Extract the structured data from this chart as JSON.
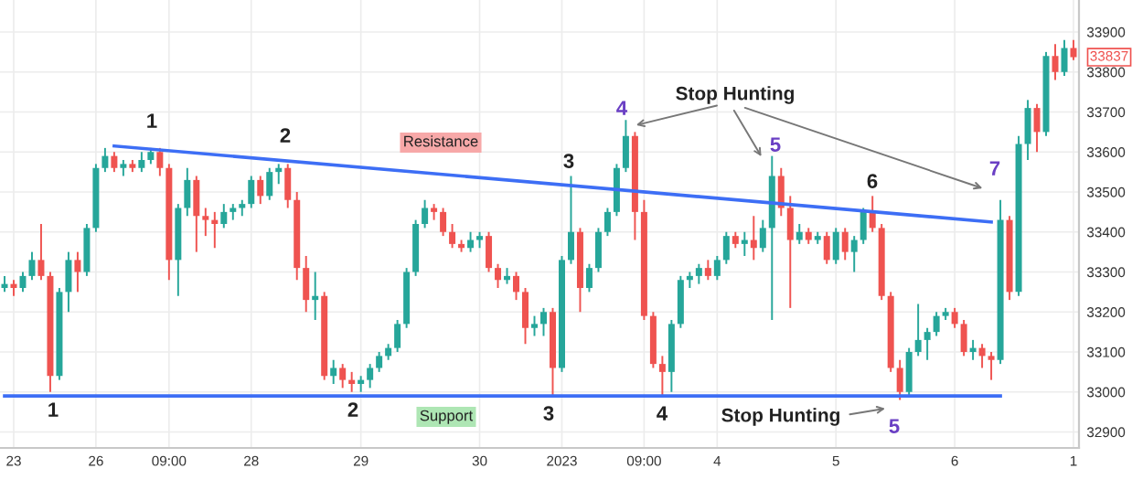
{
  "chart_data": {
    "type": "candlestick",
    "categories": [
      null,
      "23",
      null,
      null,
      null,
      null,
      null,
      null,
      null,
      null,
      "26",
      null,
      null,
      null,
      null,
      null,
      null,
      null,
      "09:00",
      null,
      null,
      null,
      null,
      null,
      null,
      null,
      null,
      "28",
      null,
      null,
      null,
      null,
      null,
      null,
      null,
      null,
      null,
      null,
      null,
      "29",
      null,
      null,
      null,
      null,
      null,
      null,
      null,
      null,
      null,
      null,
      null,
      null,
      "30",
      null,
      null,
      null,
      null,
      null,
      null,
      null,
      null,
      "2023",
      null,
      null,
      null,
      null,
      null,
      null,
      null,
      null,
      "09:00",
      null,
      null,
      null,
      null,
      null,
      null,
      null,
      "4",
      null,
      null,
      null,
      null,
      null,
      null,
      null,
      null,
      null,
      null,
      null,
      null,
      "5",
      null,
      null,
      null,
      null,
      null,
      null,
      null,
      null,
      null,
      null,
      null,
      null,
      "6",
      null,
      null,
      null,
      null,
      null,
      null,
      null,
      null,
      null,
      null,
      null,
      null,
      "1"
    ],
    "ohlc": [
      [
        33260,
        33290,
        33250,
        33270
      ],
      [
        33270,
        33280,
        33240,
        33260
      ],
      [
        33260,
        33300,
        33250,
        33290
      ],
      [
        33290,
        33350,
        33280,
        33330
      ],
      [
        33330,
        33420,
        33280,
        33290
      ],
      [
        33290,
        33300,
        33000,
        33040
      ],
      [
        33040,
        33260,
        33030,
        33250
      ],
      [
        33250,
        33350,
        33200,
        33330
      ],
      [
        33330,
        33350,
        33250,
        33300
      ],
      [
        33300,
        33420,
        33290,
        33410
      ],
      [
        33410,
        33570,
        33400,
        33560
      ],
      [
        33560,
        33610,
        33550,
        33590
      ],
      [
        33590,
        33600,
        33550,
        33560
      ],
      [
        33560,
        33580,
        33540,
        33570
      ],
      [
        33570,
        33580,
        33550,
        33560
      ],
      [
        33560,
        33600,
        33550,
        33580
      ],
      [
        33580,
        33610,
        33570,
        33600
      ],
      [
        33600,
        33610,
        33540,
        33560
      ],
      [
        33560,
        33570,
        33280,
        33330
      ],
      [
        33330,
        33470,
        33240,
        33460
      ],
      [
        33460,
        33560,
        33440,
        33530
      ],
      [
        33530,
        33540,
        33350,
        33440
      ],
      [
        33440,
        33460,
        33390,
        33430
      ],
      [
        33430,
        33450,
        33360,
        33420
      ],
      [
        33420,
        33470,
        33410,
        33450
      ],
      [
        33450,
        33470,
        33430,
        33460
      ],
      [
        33460,
        33480,
        33440,
        33470
      ],
      [
        33470,
        33540,
        33460,
        33530
      ],
      [
        33530,
        33540,
        33470,
        33490
      ],
      [
        33490,
        33560,
        33480,
        33550
      ],
      [
        33550,
        33570,
        33520,
        33560
      ],
      [
        33560,
        33570,
        33460,
        33480
      ],
      [
        33480,
        33500,
        33280,
        33310
      ],
      [
        33310,
        33340,
        33200,
        33230
      ],
      [
        33230,
        33300,
        33180,
        33240
      ],
      [
        33240,
        33250,
        33030,
        33040
      ],
      [
        33040,
        33080,
        33020,
        33060
      ],
      [
        33060,
        33070,
        33010,
        33030
      ],
      [
        33030,
        33050,
        33000,
        33020
      ],
      [
        33020,
        33040,
        33000,
        33030
      ],
      [
        33030,
        33070,
        33010,
        33060
      ],
      [
        33060,
        33100,
        33050,
        33090
      ],
      [
        33090,
        33120,
        33080,
        33110
      ],
      [
        33110,
        33180,
        33100,
        33170
      ],
      [
        33170,
        33310,
        33160,
        33300
      ],
      [
        33300,
        33430,
        33290,
        33420
      ],
      [
        33420,
        33480,
        33410,
        33460
      ],
      [
        33460,
        33470,
        33430,
        33450
      ],
      [
        33450,
        33460,
        33390,
        33400
      ],
      [
        33400,
        33420,
        33360,
        33370
      ],
      [
        33370,
        33380,
        33350,
        33360
      ],
      [
        33360,
        33400,
        33350,
        33380
      ],
      [
        33380,
        33400,
        33360,
        33390
      ],
      [
        33390,
        33400,
        33300,
        33310
      ],
      [
        33310,
        33320,
        33260,
        33280
      ],
      [
        33280,
        33310,
        33270,
        33290
      ],
      [
        33290,
        33300,
        33230,
        33250
      ],
      [
        33250,
        33260,
        33120,
        33160
      ],
      [
        33160,
        33190,
        33140,
        33170
      ],
      [
        33170,
        33210,
        33140,
        33200
      ],
      [
        33200,
        33210,
        32990,
        33060
      ],
      [
        33060,
        33340,
        33050,
        33330
      ],
      [
        33330,
        33540,
        33320,
        33400
      ],
      [
        33400,
        33410,
        33200,
        33260
      ],
      [
        33260,
        33320,
        33250,
        33310
      ],
      [
        33310,
        33410,
        33300,
        33400
      ],
      [
        33400,
        33460,
        33390,
        33450
      ],
      [
        33450,
        33570,
        33440,
        33560
      ],
      [
        33560,
        33680,
        33550,
        33640
      ],
      [
        33640,
        33650,
        33380,
        33450
      ],
      [
        33450,
        33480,
        33180,
        33190
      ],
      [
        33190,
        33200,
        33060,
        33070
      ],
      [
        33070,
        33090,
        32990,
        33050
      ],
      [
        33050,
        33180,
        33000,
        33170
      ],
      [
        33170,
        33290,
        33160,
        33280
      ],
      [
        33280,
        33300,
        33260,
        33290
      ],
      [
        33290,
        33320,
        33270,
        33310
      ],
      [
        33310,
        33330,
        33280,
        33290
      ],
      [
        33290,
        33340,
        33280,
        33330
      ],
      [
        33330,
        33400,
        33320,
        33390
      ],
      [
        33390,
        33400,
        33360,
        33370
      ],
      [
        33370,
        33400,
        33340,
        33380
      ],
      [
        33380,
        33440,
        33330,
        33360
      ],
      [
        33360,
        33430,
        33350,
        33410
      ],
      [
        33410,
        33590,
        33180,
        33540
      ],
      [
        33540,
        33560,
        33440,
        33460
      ],
      [
        33460,
        33490,
        33210,
        33380
      ],
      [
        33380,
        33420,
        33370,
        33400
      ],
      [
        33400,
        33410,
        33370,
        33380
      ],
      [
        33380,
        33400,
        33370,
        33390
      ],
      [
        33390,
        33400,
        33320,
        33330
      ],
      [
        33330,
        33410,
        33320,
        33400
      ],
      [
        33400,
        33410,
        33330,
        33350
      ],
      [
        33350,
        33390,
        33300,
        33380
      ],
      [
        33380,
        33460,
        33370,
        33450
      ],
      [
        33450,
        33490,
        33400,
        33410
      ],
      [
        33410,
        33420,
        33230,
        33240
      ],
      [
        33240,
        33250,
        33050,
        33060
      ],
      [
        33060,
        33080,
        32980,
        33000
      ],
      [
        33000,
        33110,
        32990,
        33100
      ],
      [
        33100,
        33220,
        33090,
        33130
      ],
      [
        33130,
        33160,
        33080,
        33150
      ],
      [
        33150,
        33200,
        33140,
        33190
      ],
      [
        33190,
        33210,
        33180,
        33200
      ],
      [
        33200,
        33210,
        33160,
        33170
      ],
      [
        33170,
        33180,
        33090,
        33100
      ],
      [
        33100,
        33130,
        33080,
        33110
      ],
      [
        33110,
        33120,
        33060,
        33090
      ],
      [
        33090,
        33100,
        33030,
        33080
      ],
      [
        33080,
        33480,
        33070,
        33430
      ],
      [
        33430,
        33440,
        33230,
        33250
      ],
      [
        33250,
        33640,
        33240,
        33620
      ],
      [
        33620,
        33730,
        33580,
        33710
      ],
      [
        33710,
        33720,
        33600,
        33650
      ],
      [
        33650,
        33850,
        33640,
        33840
      ],
      [
        33840,
        33870,
        33780,
        33800
      ],
      [
        33800,
        33880,
        33790,
        33860
      ],
      [
        33860,
        33880,
        33830,
        33837
      ]
    ],
    "colors": [
      "#26a69a",
      "#ef5350",
      "#26a69a",
      "#26a69a",
      "#ef5350",
      "#ef5350",
      "#26a69a",
      "#26a69a",
      "#ef5350",
      "#26a69a",
      "#26a69a",
      "#26a69a",
      "#ef5350",
      "#26a69a",
      "#ef5350",
      "#26a69a",
      "#26a69a",
      "#ef5350",
      "#ef5350",
      "#26a69a",
      "#26a69a",
      "#ef5350",
      "#ef5350",
      "#ef5350",
      "#26a69a",
      "#26a69a",
      "#26a69a",
      "#26a69a",
      "#ef5350",
      "#26a69a",
      "#26a69a",
      "#ef5350",
      "#ef5350",
      "#ef5350",
      "#26a69a",
      "#ef5350",
      "#26a69a",
      "#ef5350",
      "#ef5350",
      "#26a69a",
      "#26a69a",
      "#26a69a",
      "#26a69a",
      "#26a69a",
      "#26a69a",
      "#26a69a",
      "#26a69a",
      "#ef5350",
      "#ef5350",
      "#ef5350",
      "#ef5350",
      "#26a69a",
      "#26a69a",
      "#ef5350",
      "#ef5350",
      "#26a69a",
      "#ef5350",
      "#ef5350",
      "#26a69a",
      "#26a69a",
      "#ef5350",
      "#26a69a",
      "#26a69a",
      "#ef5350",
      "#26a69a",
      "#26a69a",
      "#26a69a",
      "#26a69a",
      "#26a69a",
      "#ef5350",
      "#ef5350",
      "#ef5350",
      "#ef5350",
      "#26a69a",
      "#26a69a",
      "#26a69a",
      "#26a69a",
      "#ef5350",
      "#26a69a",
      "#26a69a",
      "#ef5350",
      "#26a69a",
      "#ef5350",
      "#26a69a",
      "#26a69a",
      "#ef5350",
      "#ef5350",
      "#26a69a",
      "#ef5350",
      "#26a69a",
      "#ef5350",
      "#26a69a",
      "#ef5350",
      "#26a69a",
      "#26a69a",
      "#ef5350",
      "#ef5350",
      "#ef5350",
      "#ef5350",
      "#26a69a",
      "#26a69a",
      "#26a69a",
      "#26a69a",
      "#26a69a",
      "#ef5350",
      "#ef5350",
      "#26a69a",
      "#ef5350",
      "#ef5350",
      "#26a69a",
      "#ef5350",
      "#26a69a",
      "#26a69a",
      "#ef5350",
      "#26a69a",
      "#ef5350",
      "#26a69a",
      "#ef5350"
    ],
    "series": [
      {
        "type": "line",
        "values": [
          null,
          null,
          null,
          null,
          null,
          null,
          null,
          null,
          null,
          null,
          null,
          null,
          33615,
          null,
          null,
          null,
          null,
          null,
          null,
          null,
          null,
          null,
          null,
          null,
          null,
          null,
          null,
          null,
          null,
          null,
          null,
          null,
          null,
          null,
          null,
          null,
          null,
          null,
          null,
          null,
          null,
          null,
          null,
          null,
          null,
          null,
          null,
          null,
          null,
          null,
          null,
          null,
          null,
          null,
          null,
          null,
          null,
          null,
          null,
          null,
          null,
          null,
          null,
          null,
          null,
          null,
          null,
          null,
          null,
          null,
          null,
          null,
          null,
          null,
          null,
          null,
          null,
          null,
          null,
          null,
          null,
          null,
          null,
          null,
          null,
          null,
          null,
          null,
          null,
          null,
          null,
          null,
          null,
          null,
          null,
          null,
          null,
          null,
          null,
          null,
          null,
          null,
          null,
          null,
          null,
          null,
          null,
          null,
          33425,
          null,
          null,
          null,
          null,
          null,
          null,
          null,
          null,
          null
        ],
        "color": "#3d6ef5"
      },
      {
        "type": "line",
        "values": [
          32990,
          null,
          null,
          null,
          null,
          null,
          null,
          null,
          null,
          null,
          null,
          null,
          null,
          null,
          null,
          null,
          null,
          null,
          null,
          null,
          null,
          null,
          null,
          null,
          null,
          null,
          null,
          null,
          null,
          null,
          null,
          null,
          null,
          null,
          null,
          null,
          null,
          null,
          null,
          null,
          null,
          null,
          null,
          null,
          null,
          null,
          null,
          null,
          null,
          null,
          null,
          null,
          null,
          null,
          null,
          null,
          null,
          null,
          null,
          null,
          null,
          null,
          null,
          null,
          null,
          null,
          null,
          null,
          null,
          null,
          null,
          null,
          null,
          null,
          null,
          null,
          null,
          null,
          null,
          null,
          null,
          null,
          null,
          null,
          null,
          null,
          null,
          null,
          null,
          null,
          null,
          null,
          null,
          null,
          null,
          null,
          null,
          null,
          null,
          null,
          null,
          null,
          null,
          null,
          null,
          null,
          null,
          null,
          null,
          32990,
          null,
          null,
          null,
          null,
          null,
          null,
          null,
          null
        ],
        "color": "#3d6ef5"
      }
    ],
    "ylim": [
      32860,
      33980
    ],
    "yticks": [
      32900,
      33000,
      33100,
      33200,
      33300,
      33400,
      33500,
      33600,
      33700,
      33800,
      33900
    ],
    "grid": true,
    "annotations": [
      "1",
      "2",
      "3",
      "4",
      "5",
      "6",
      "7",
      "1",
      "2",
      "3",
      "4",
      "5",
      "Resistance",
      "Support",
      "Stop Hunting",
      "Stop Hunting",
      "33837"
    ]
  }
}
